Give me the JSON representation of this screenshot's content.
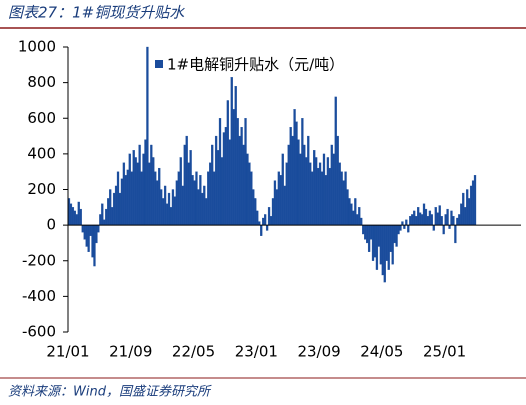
{
  "chart_data": {
    "type": "bar",
    "title": "图表27：1#铜现货升贴水",
    "source": "资料来源：Wind，国盛证券研究所",
    "ylim": [
      -600,
      1000
    ],
    "yticks": [
      -600,
      -400,
      -200,
      0,
      200,
      400,
      600,
      800,
      1000
    ],
    "categories": [
      "21/01",
      null,
      null,
      null,
      null,
      null,
      null,
      null,
      null,
      null,
      null,
      null,
      null,
      null,
      null,
      null,
      null,
      null,
      null,
      null,
      null,
      null,
      null,
      null,
      null,
      null,
      null,
      null,
      null,
      null,
      null,
      null,
      "21/09",
      null,
      null,
      null,
      null,
      null,
      null,
      null,
      null,
      null,
      null,
      null,
      null,
      null,
      null,
      null,
      null,
      null,
      null,
      null,
      null,
      null,
      null,
      null,
      null,
      null,
      null,
      null,
      null,
      null,
      null,
      null,
      "22/05",
      null,
      null,
      null,
      null,
      null,
      null,
      null,
      null,
      null,
      null,
      null,
      null,
      null,
      null,
      null,
      null,
      null,
      null,
      null,
      null,
      null,
      null,
      null,
      null,
      null,
      null,
      null,
      null,
      null,
      null,
      null,
      "23/01",
      null,
      null,
      null,
      null,
      null,
      null,
      null,
      null,
      null,
      null,
      null,
      null,
      null,
      null,
      null,
      null,
      null,
      null,
      null,
      null,
      null,
      null,
      null,
      null,
      null,
      null,
      null,
      null,
      null,
      null,
      null,
      "23/09",
      null,
      null,
      null,
      null,
      null,
      null,
      null,
      null,
      null,
      null,
      null,
      null,
      null,
      null,
      null,
      null,
      null,
      null,
      null,
      null,
      null,
      null,
      null,
      null,
      null,
      null,
      null,
      null,
      null,
      null,
      null,
      "24/05",
      null,
      null,
      null,
      null,
      null,
      null,
      null,
      null,
      null,
      null,
      null,
      null,
      null,
      null,
      null,
      null,
      null,
      null,
      null,
      null,
      null,
      null,
      null,
      null,
      null,
      null,
      null,
      null,
      null,
      null,
      null,
      "25/01",
      null,
      null,
      null,
      null,
      null,
      null,
      null,
      null,
      null,
      null,
      null,
      null,
      null,
      null,
      null
    ],
    "series": [
      {
        "name": "1#电解铜升贴水（元/吨）",
        "color": "#1a4c9c",
        "values": [
          150,
          120,
          100,
          80,
          60,
          130,
          90,
          -40,
          -80,
          -120,
          -150,
          -60,
          -180,
          -230,
          -100,
          -40,
          60,
          120,
          30,
          90,
          150,
          200,
          100,
          180,
          220,
          300,
          180,
          260,
          350,
          280,
          310,
          400,
          300,
          420,
          380,
          350,
          450,
          300,
          400,
          480,
          1000,
          350,
          450,
          380,
          300,
          250,
          320,
          200,
          150,
          220,
          120,
          180,
          100,
          200,
          160,
          250,
          300,
          380,
          220,
          450,
          500,
          350,
          420,
          280,
          250,
          300,
          200,
          280,
          180,
          220,
          150,
          300,
          350,
          450,
          300,
          500,
          420,
          600,
          380,
          520,
          550,
          700,
          480,
          830,
          650,
          780,
          600,
          500,
          550,
          450,
          600,
          400,
          350,
          300,
          200,
          150,
          80,
          20,
          -60,
          40,
          60,
          -30,
          100,
          50,
          150,
          250,
          200,
          300,
          280,
          400,
          220,
          350,
          450,
          550,
          500,
          650,
          580,
          480,
          400,
          600,
          450,
          380,
          500,
          350,
          300,
          420,
          380,
          320,
          350,
          300,
          400,
          280,
          380,
          320,
          450,
          400,
          720,
          500,
          350,
          300,
          250,
          300,
          200,
          150,
          120,
          80,
          150,
          60,
          100,
          40,
          -50,
          -80,
          -100,
          -150,
          -80,
          -200,
          -180,
          -250,
          -120,
          -220,
          -280,
          -320,
          -200,
          -250,
          -150,
          -220,
          -100,
          -120,
          -50,
          -30,
          20,
          -20,
          30,
          -40,
          50,
          60,
          80,
          50,
          100,
          70,
          60,
          120,
          90,
          50,
          80,
          60,
          -30,
          100,
          70,
          110,
          50,
          -50,
          60,
          90,
          -20,
          80,
          50,
          -100,
          40,
          60,
          120,
          180,
          100,
          200,
          150,
          220,
          250,
          280
        ]
      }
    ]
  }
}
